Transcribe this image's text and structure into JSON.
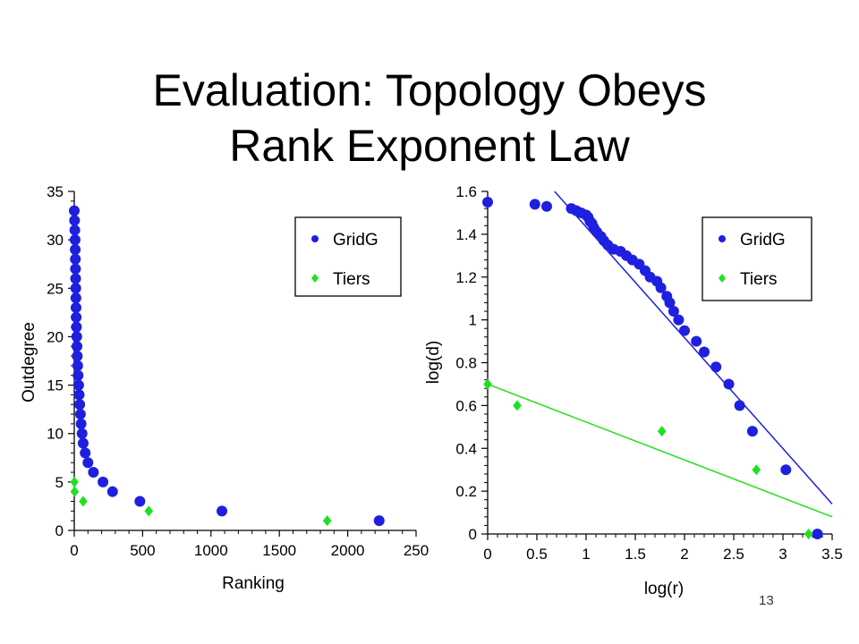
{
  "slide": {
    "title_line1": "Evaluation: Topology Obeys",
    "title_line2": "Rank Exponent Law",
    "page_number": "13"
  },
  "chart_data": [
    {
      "type": "scatter",
      "xlabel": "Ranking",
      "ylabel": "Outdegree",
      "xlim": [
        0,
        2500
      ],
      "ylim": [
        0,
        35
      ],
      "x_ticks": [
        "0",
        "500",
        "1000",
        "1500",
        "2000",
        "250"
      ],
      "y_ticks": [
        "0",
        "5",
        "10",
        "15",
        "20",
        "25",
        "30",
        "35"
      ],
      "legend_position": "top-right",
      "series": [
        {
          "name": "GridG",
          "color": "#1f1fe0",
          "marker": "circle",
          "points": [
            [
              0,
              33
            ],
            [
              2,
              32
            ],
            [
              4,
              31
            ],
            [
              6,
              30
            ],
            [
              7,
              29
            ],
            [
              8,
              28
            ],
            [
              9,
              27
            ],
            [
              10,
              26
            ],
            [
              11,
              25
            ],
            [
              12,
              24
            ],
            [
              13,
              23
            ],
            [
              14,
              22
            ],
            [
              16,
              21
            ],
            [
              18,
              20
            ],
            [
              20,
              19
            ],
            [
              22,
              18
            ],
            [
              25,
              17
            ],
            [
              28,
              16
            ],
            [
              32,
              15
            ],
            [
              36,
              14
            ],
            [
              40,
              13
            ],
            [
              45,
              12
            ],
            [
              50,
              11
            ],
            [
              57,
              10
            ],
            [
              65,
              9
            ],
            [
              80,
              8
            ],
            [
              100,
              7
            ],
            [
              140,
              6
            ],
            [
              210,
              5
            ],
            [
              280,
              4
            ],
            [
              480,
              3
            ],
            [
              1080,
              2
            ],
            [
              2230,
              1
            ]
          ]
        },
        {
          "name": "Tiers",
          "color": "#1ee11e",
          "marker": "diamond",
          "points": [
            [
              1,
              5
            ],
            [
              3,
              4
            ],
            [
              65,
              3
            ],
            [
              545,
              2
            ],
            [
              1850,
              1
            ]
          ]
        }
      ]
    },
    {
      "type": "scatter",
      "xlabel": "log(r)",
      "ylabel": "log(d)",
      "xlim": [
        0,
        3.5
      ],
      "ylim": [
        0,
        1.6
      ],
      "x_ticks": [
        "0",
        "0.5",
        "1",
        "1.5",
        "2",
        "2.5",
        "3",
        "3.5"
      ],
      "y_ticks": [
        "0",
        "0.2",
        "0.4",
        "0.6",
        "0.8",
        "1",
        "1.2",
        "1.4",
        "1.6"
      ],
      "legend_position": "top-right",
      "series": [
        {
          "name": "GridG",
          "color": "#1f1fe0",
          "marker": "circle",
          "points": [
            [
              0,
              1.55
            ],
            [
              0.48,
              1.54
            ],
            [
              0.6,
              1.53
            ],
            [
              0.85,
              1.52
            ],
            [
              0.9,
              1.51
            ],
            [
              0.95,
              1.5
            ],
            [
              1.0,
              1.49
            ],
            [
              1.02,
              1.48
            ],
            [
              1.04,
              1.46
            ],
            [
              1.06,
              1.45
            ],
            [
              1.08,
              1.43
            ],
            [
              1.11,
              1.41
            ],
            [
              1.15,
              1.39
            ],
            [
              1.18,
              1.37
            ],
            [
              1.22,
              1.35
            ],
            [
              1.28,
              1.33
            ],
            [
              1.35,
              1.32
            ],
            [
              1.41,
              1.3
            ],
            [
              1.47,
              1.28
            ],
            [
              1.54,
              1.26
            ],
            [
              1.6,
              1.23
            ],
            [
              1.65,
              1.2
            ],
            [
              1.72,
              1.18
            ],
            [
              1.76,
              1.15
            ],
            [
              1.82,
              1.11
            ],
            [
              1.85,
              1.08
            ],
            [
              1.89,
              1.04
            ],
            [
              1.94,
              1.0
            ],
            [
              2.0,
              0.95
            ],
            [
              2.12,
              0.9
            ],
            [
              2.2,
              0.85
            ],
            [
              2.32,
              0.78
            ],
            [
              2.45,
              0.7
            ],
            [
              2.56,
              0.6
            ],
            [
              2.69,
              0.48
            ],
            [
              3.03,
              0.3
            ],
            [
              3.35,
              0.0
            ]
          ]
        },
        {
          "name": "Tiers",
          "color": "#1ee11e",
          "marker": "diamond",
          "points": [
            [
              0,
              0.7
            ],
            [
              0.3,
              0.6
            ],
            [
              1.77,
              0.48
            ],
            [
              2.73,
              0.3
            ],
            [
              3.26,
              0.0
            ]
          ]
        }
      ],
      "fit_lines": [
        {
          "series": "GridG",
          "color": "#1f1fe0",
          "from": [
            0.68,
            1.6
          ],
          "to": [
            3.5,
            0.14
          ]
        },
        {
          "series": "Tiers",
          "color": "#1ee11e",
          "from": [
            0,
            0.7
          ],
          "to": [
            3.5,
            0.08
          ]
        }
      ]
    }
  ]
}
